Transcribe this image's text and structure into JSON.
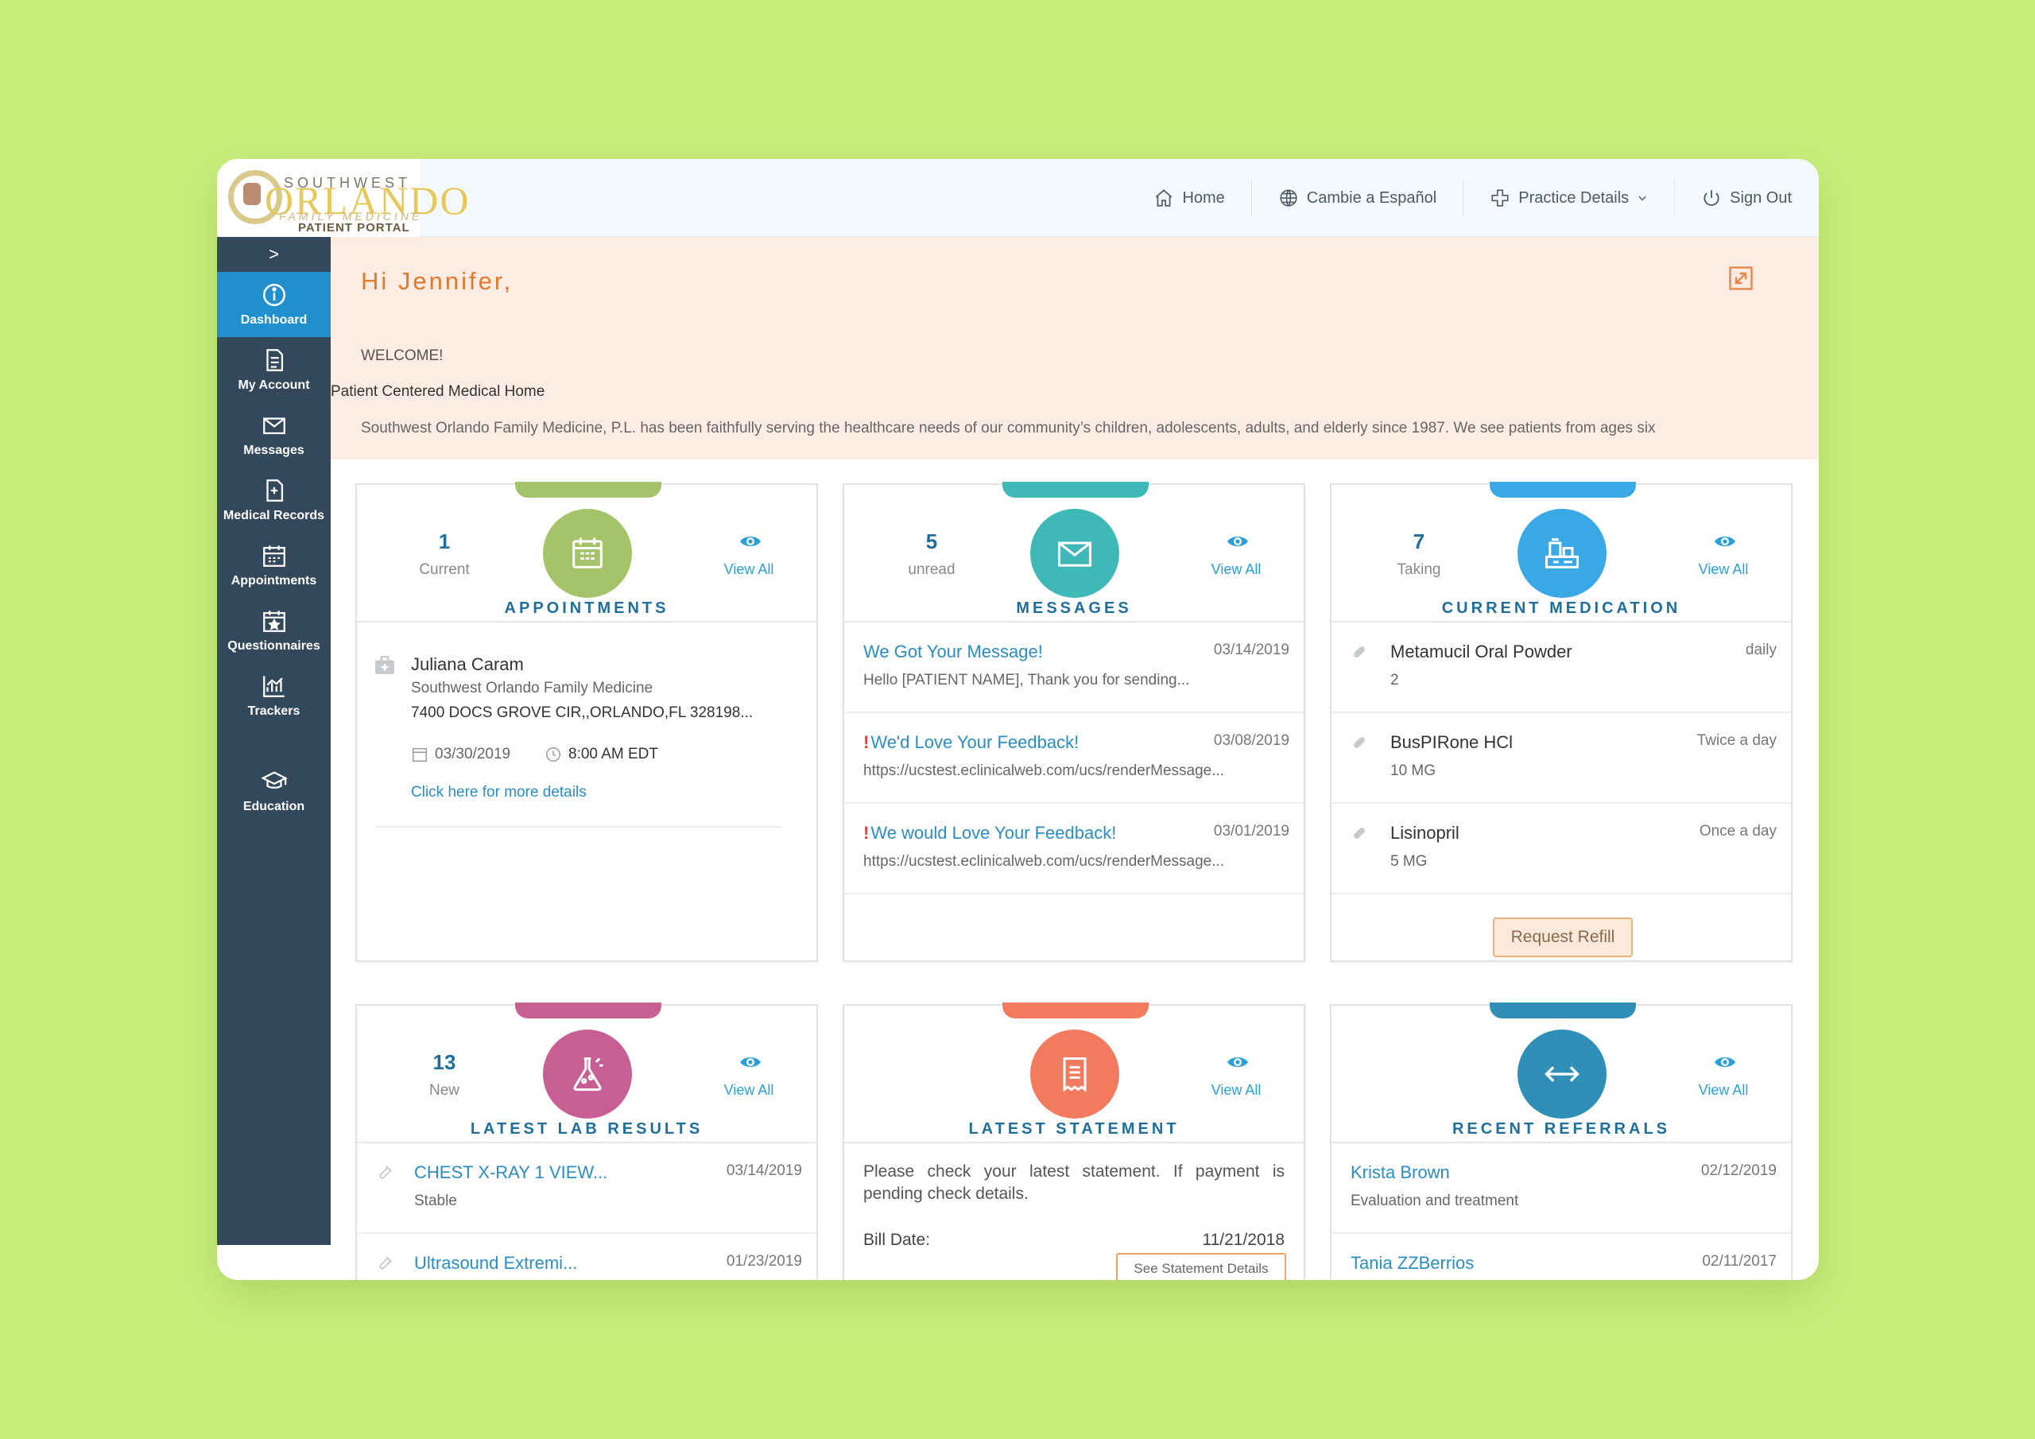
{
  "logo": {
    "line1": "SOUTHWEST",
    "line2": "ORLANDO",
    "line3": "FAMILY MEDICINE",
    "line4": "PATIENT PORTAL"
  },
  "nav": {
    "home": "Home",
    "spanish": "Cambie a Español",
    "practice": "Practice Details",
    "signout": "Sign Out"
  },
  "sidebar": {
    "toggle": ">",
    "items": [
      {
        "label": "Dashboard",
        "icon": "info-icon"
      },
      {
        "label": "My Account",
        "icon": "document-icon"
      },
      {
        "label": "Messages",
        "icon": "envelope-icon"
      },
      {
        "label": "Medical Records",
        "icon": "medical-record-icon"
      },
      {
        "label": "Appointments",
        "icon": "calendar-icon"
      },
      {
        "label": "Questionnaires",
        "icon": "questionnaire-icon"
      },
      {
        "label": "Trackers",
        "icon": "chart-icon"
      },
      {
        "label": "Education",
        "icon": "graduation-cap-icon"
      }
    ]
  },
  "welcome": {
    "greeting": "Hi Jennifer,",
    "title": "WELCOME!",
    "subtitle": "Patient Centered Medical Home",
    "body": "Southwest Orlando Family Medicine, P.L. has been faithfully serving the healthcare needs of our community’s children, adolescents, adults, and elderly since 1987. We see patients from ages six"
  },
  "cards": {
    "appointments": {
      "count": "1",
      "count_label": "Current",
      "view_all": "View All",
      "title": "APPOINTMENTS",
      "name": "Juliana Caram",
      "practice": "Southwest Orlando Family Medicine",
      "address": "7400 DOCS GROVE CIR,,ORLANDO,FL 328198...",
      "date": "03/30/2019",
      "time": "8:00 AM EDT",
      "link": "Click here for more details"
    },
    "messages": {
      "count": "5",
      "count_label": "unread",
      "view_all": "View All",
      "title": "MESSAGES",
      "items": [
        {
          "title": "We Got Your Message!",
          "date": "03/14/2019",
          "preview": "Hello [PATIENT NAME], Thank you for sending..."
        },
        {
          "title": "We'd Love Your Feedback!",
          "date": "03/08/2019",
          "preview": "https://ucstest.eclinicalweb.com/ucs/renderMessage..."
        },
        {
          "title": "We would Love Your Feedback!",
          "date": "03/01/2019",
          "preview": "https://ucstest.eclinicalweb.com/ucs/renderMessage..."
        }
      ]
    },
    "medication": {
      "count": "7",
      "count_label": "Taking",
      "view_all": "View All",
      "title": "CURRENT MEDICATION",
      "items": [
        {
          "name": "Metamucil Oral Powder",
          "freq": "daily",
          "dose": "2"
        },
        {
          "name": "BusPIRone HCl",
          "freq": "Twice a day",
          "dose": "10 MG"
        },
        {
          "name": "Lisinopril",
          "freq": "Once a day",
          "dose": "5 MG"
        }
      ],
      "refill": "Request Refill"
    },
    "labs": {
      "count": "13",
      "count_label": "New",
      "view_all": "View All",
      "title": "LATEST LAB RESULTS",
      "items": [
        {
          "title": "CHEST X-RAY 1 VIEW...",
          "date": "03/14/2019",
          "status": "Stable"
        },
        {
          "title": "Ultrasound Extremi...",
          "date": "01/23/2019",
          "status": ""
        }
      ]
    },
    "statement": {
      "view_all": "View All",
      "title": "LATEST STATEMENT",
      "text": "Please check your latest statement. If payment is pending check details.",
      "bill_label": "Bill Date:",
      "bill_date": "11/21/2018",
      "details": "See Statement Details"
    },
    "referrals": {
      "view_all": "View All",
      "title": "RECENT REFERRALS",
      "items": [
        {
          "name": "Krista Brown",
          "date": "02/12/2019",
          "desc": "Evaluation and treatment"
        },
        {
          "name": "Tania ZZBerrios",
          "date": "02/11/2017",
          "desc": ""
        }
      ]
    }
  },
  "colors": {
    "appointments": "#a5c46a",
    "messages": "#3fb8b8",
    "medication": "#3aa8e4",
    "labs": "#c85f94",
    "statement": "#f27b5f",
    "referrals": "#2f8fb6",
    "sidebar": "#33495b",
    "active": "#1f8fce"
  }
}
